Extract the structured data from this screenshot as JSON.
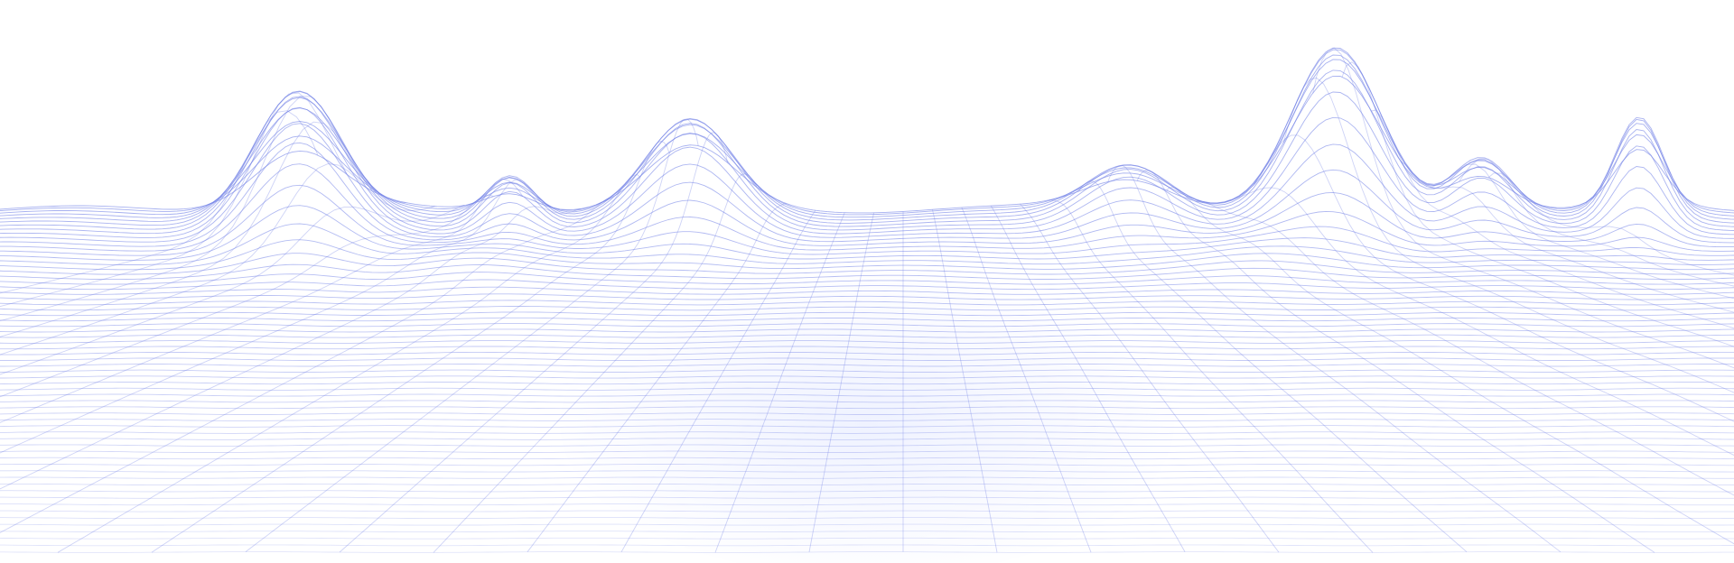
{
  "background": {
    "kind": "wireframe-terrain",
    "page_color": "#ffffff",
    "line_color": "#6f7fe6",
    "glow_color": "#eef1ff",
    "peak_count": 7,
    "grid_rows": 62,
    "grid_columns": 40
  }
}
